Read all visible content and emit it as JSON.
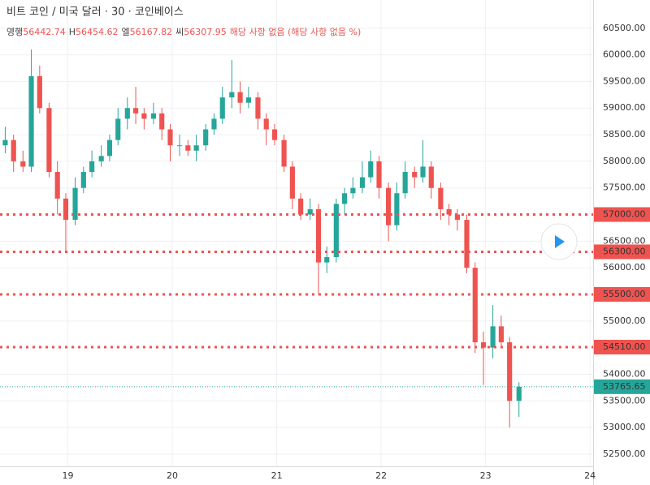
{
  "chart_data": {
    "type": "candlestick",
    "title": "비트 코인 / 미국 달러 · 30 · 코인베이스",
    "ohlc_header": [
      {
        "label": "영행",
        "value": 56442.74
      },
      {
        "label": "H",
        "value": 56454.62
      },
      {
        "label": "엘",
        "value": 56167.82
      },
      {
        "label": "씨",
        "value": 56307.95
      }
    ],
    "change_text": "해당 사항 없음 (해당 사항 없음 %)",
    "up_color": "#26a69a",
    "down_color": "#ef5350",
    "x": [
      18.4,
      18.48,
      18.57,
      18.65,
      18.73,
      18.82,
      18.9,
      18.98,
      19.07,
      19.15,
      19.23,
      19.32,
      19.4,
      19.48,
      19.57,
      19.65,
      19.73,
      19.82,
      19.9,
      19.98,
      20.07,
      20.15,
      20.23,
      20.32,
      20.4,
      20.48,
      20.57,
      20.65,
      20.73,
      20.82,
      20.9,
      20.98,
      21.07,
      21.15,
      21.23,
      21.32,
      21.4,
      21.48,
      21.57,
      21.65,
      21.73,
      21.82,
      21.9,
      21.98,
      22.07,
      22.15,
      22.23,
      22.32,
      22.4,
      22.48,
      22.57,
      22.65,
      22.73,
      22.82,
      22.9,
      22.98,
      23.07,
      23.15,
      23.23,
      23.32
    ],
    "open": [
      58300,
      58400,
      58000,
      57900,
      59600,
      59000,
      57800,
      57300,
      56900,
      57500,
      57800,
      58000,
      58100,
      58400,
      58800,
      59000,
      58900,
      58800,
      58900,
      58600,
      58300,
      58300,
      58200,
      58300,
      58600,
      58800,
      59200,
      59300,
      59100,
      59200,
      58800,
      58600,
      58400,
      57900,
      57300,
      57000,
      57100,
      56100,
      56200,
      57200,
      57400,
      57500,
      57700,
      58000,
      57500,
      56800,
      57400,
      57800,
      57700,
      57900,
      57500,
      57100,
      57000,
      56900,
      56000,
      54600,
      54500,
      54900,
      54600,
      53500
    ],
    "high": [
      58650,
      58500,
      58200,
      60100,
      59800,
      59100,
      58000,
      57400,
      57700,
      57900,
      58200,
      58300,
      58500,
      59000,
      59200,
      59400,
      59000,
      59100,
      59000,
      58700,
      58500,
      58400,
      58500,
      58700,
      58900,
      59400,
      59900,
      59500,
      59400,
      59300,
      58900,
      58700,
      58500,
      58000,
      57400,
      57300,
      57200,
      56400,
      57300,
      57500,
      57700,
      58000,
      58200,
      58100,
      57600,
      57600,
      58000,
      57900,
      58400,
      58000,
      57600,
      57200,
      57100,
      57000,
      56100,
      54800,
      55300,
      55100,
      54700,
      53850
    ],
    "low": [
      58150,
      57800,
      57800,
      57800,
      58900,
      57700,
      57000,
      56300,
      56800,
      57400,
      57700,
      57900,
      58000,
      58300,
      58600,
      58700,
      58600,
      58700,
      58400,
      58000,
      58100,
      58100,
      58000,
      58200,
      58500,
      58700,
      59000,
      58900,
      59000,
      58600,
      58300,
      58300,
      57800,
      57100,
      56900,
      56900,
      55500,
      55900,
      56100,
      57000,
      57300,
      57400,
      57600,
      57300,
      56500,
      56700,
      57300,
      57500,
      57600,
      57300,
      56900,
      56800,
      56700,
      55900,
      54400,
      53800,
      54300,
      54500,
      53000,
      53200
    ],
    "close": [
      58400,
      58000,
      57900,
      59600,
      59000,
      57800,
      57300,
      56900,
      57500,
      57800,
      58000,
      58100,
      58400,
      58800,
      59000,
      58900,
      58800,
      58900,
      58600,
      58300,
      58300,
      58200,
      58300,
      58600,
      58800,
      59200,
      59300,
      59100,
      59200,
      58800,
      58600,
      58400,
      57900,
      57300,
      57000,
      57100,
      56100,
      56200,
      57200,
      57400,
      57500,
      57700,
      58000,
      57500,
      56800,
      57400,
      57800,
      57700,
      57900,
      57500,
      57100,
      57000,
      56900,
      56000,
      54600,
      54500,
      54900,
      54600,
      53500,
      53765.65
    ],
    "levels": {
      "values": [
        57000,
        56300,
        55500,
        54510
      ],
      "value_labels": [
        "57000.00",
        "56300.00",
        "55500.00",
        "54510.00"
      ],
      "color": "#ef5350"
    },
    "last_price": {
      "value": 53765.65,
      "color": "#26a69a"
    },
    "xlim": [
      18.35,
      24.03
    ],
    "xticks": [
      19,
      20,
      21,
      22,
      23,
      24
    ],
    "ylim": [
      52270,
      61030
    ],
    "yticks": [
      {
        "value": 52500,
        "label": "52500.00"
      },
      {
        "value": 53000,
        "label": "53000.00"
      },
      {
        "value": 53500,
        "label": "53500.00"
      },
      {
        "value": 54000,
        "label": "54000.00"
      },
      {
        "value": 55000,
        "label": "55000.00"
      },
      {
        "value": 56000,
        "label": "56000.00"
      },
      {
        "value": 56500,
        "label": "56500.00"
      },
      {
        "value": 57500,
        "label": "57500.00"
      },
      {
        "value": 58000,
        "label": "58000.00"
      },
      {
        "value": 58500,
        "label": "58500.00"
      },
      {
        "value": 59000,
        "label": "59000.00"
      },
      {
        "value": 59500,
        "label": "59500.00"
      },
      {
        "value": 60000,
        "label": "60000.00"
      },
      {
        "value": 60500,
        "label": "60500.00"
      }
    ],
    "grid": true
  }
}
